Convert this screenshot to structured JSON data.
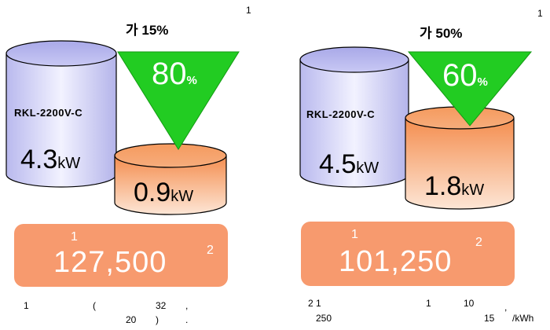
{
  "panels": [
    {
      "title": "가 15%",
      "corner_note": "1",
      "model": "RKL-2200V-C",
      "old_power": {
        "value": "4.3",
        "unit": "kW"
      },
      "new_power": {
        "value": "0.9",
        "unit": "kW"
      },
      "reduction": {
        "value": "80",
        "unit": "%"
      },
      "cost": {
        "value": "127,500",
        "sup_left": "1",
        "sup_right": "2"
      },
      "footnote_parts": [
        "1",
        "(",
        "32",
        ",",
        "20",
        ")",
        "."
      ]
    },
    {
      "title": "가 50%",
      "corner_note": "1",
      "model": "RKL-2200V-C",
      "old_power": {
        "value": "4.5",
        "unit": "kW"
      },
      "new_power": {
        "value": "1.8",
        "unit": "kW"
      },
      "reduction": {
        "value": "60",
        "unit": "%"
      },
      "cost": {
        "value": "101,250",
        "sup_left": "1",
        "sup_right": "2"
      },
      "footnote_parts": [
        "2 1",
        "1",
        "10",
        ",",
        "250",
        "15",
        "/kWh"
      ]
    }
  ],
  "colors": {
    "old_cylinder": "#c9c9f2",
    "new_cylinder": "#f7a36f",
    "arrow_green": "#22cc22",
    "cost_box": "#f79a6e"
  }
}
